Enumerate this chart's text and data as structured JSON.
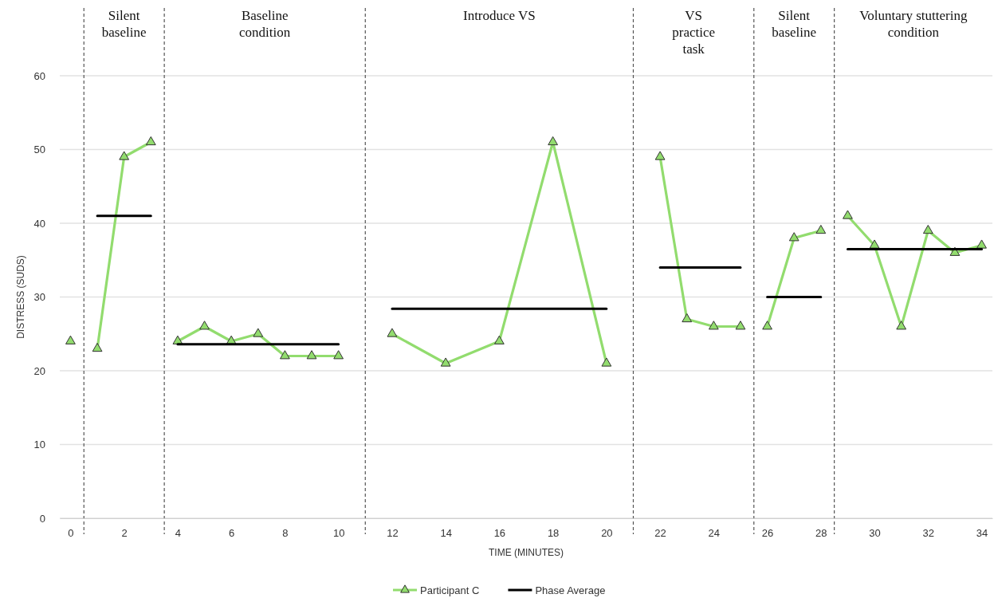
{
  "chart_data": {
    "type": "line",
    "xlabel": "TIME (MINUTES)",
    "ylabel": "DISTRESS (SUDS)",
    "xlim": [
      -0.4,
      34.4
    ],
    "xticks": [
      0,
      2,
      4,
      6,
      8,
      10,
      12,
      14,
      16,
      18,
      20,
      22,
      24,
      26,
      28,
      30,
      32,
      34
    ],
    "ylim": [
      0,
      60
    ],
    "yticks": [
      0,
      10,
      20,
      30,
      40,
      50,
      60
    ],
    "grid": "y",
    "legend": "bottom",
    "marker": "triangle",
    "series": [
      {
        "name": "Participant C",
        "color": "#92dc6e",
        "x": [
          0,
          0.5,
          1,
          2,
          3,
          3.5,
          4,
          5,
          6,
          7,
          8,
          9,
          10,
          11,
          12,
          14,
          16,
          18,
          20,
          21,
          22,
          23,
          24,
          25,
          25.5,
          26,
          27,
          28,
          28.5,
          29,
          30,
          31,
          32,
          33,
          34
        ],
        "values": [
          24,
          null,
          23,
          49,
          51,
          null,
          24,
          26,
          24,
          25,
          22,
          22,
          22,
          null,
          25,
          21,
          24,
          51,
          21,
          null,
          49,
          27,
          26,
          26,
          null,
          26,
          38,
          39,
          null,
          41,
          37,
          26,
          39,
          36,
          37
        ]
      },
      {
        "name": "Phase Average",
        "color": "#000000",
        "marker": "none",
        "x": [
          1,
          3,
          3.5,
          4,
          10,
          11,
          12,
          20,
          21,
          22,
          25,
          25.5,
          26,
          28,
          28.5,
          29,
          34
        ],
        "values": [
          41,
          41,
          null,
          23.6,
          23.6,
          null,
          28.4,
          28.4,
          null,
          34,
          34,
          null,
          30,
          30,
          null,
          36.5,
          36.5
        ]
      }
    ],
    "ref_lines": [
      {
        "axis": "x",
        "value": 0.5,
        "line_style": "dashed",
        "color": "#555555"
      },
      {
        "axis": "x",
        "value": 3.5,
        "line_style": "dashed",
        "color": "#555555"
      },
      {
        "axis": "x",
        "value": 11,
        "line_style": "dashed",
        "color": "#555555"
      },
      {
        "axis": "x",
        "value": 21,
        "line_style": "dashed",
        "color": "#555555"
      },
      {
        "axis": "x",
        "value": 25.5,
        "line_style": "dashed",
        "color": "#555555"
      },
      {
        "axis": "x",
        "value": 28.5,
        "line_style": "dashed",
        "color": "#555555"
      }
    ],
    "annotations": [
      "Silent\nbaseline",
      "Baseline\ncondition",
      "Introduce VS",
      "VS\npractice\ntask",
      "Silent\nbaseline",
      "Voluntary stuttering\ncondition"
    ]
  }
}
